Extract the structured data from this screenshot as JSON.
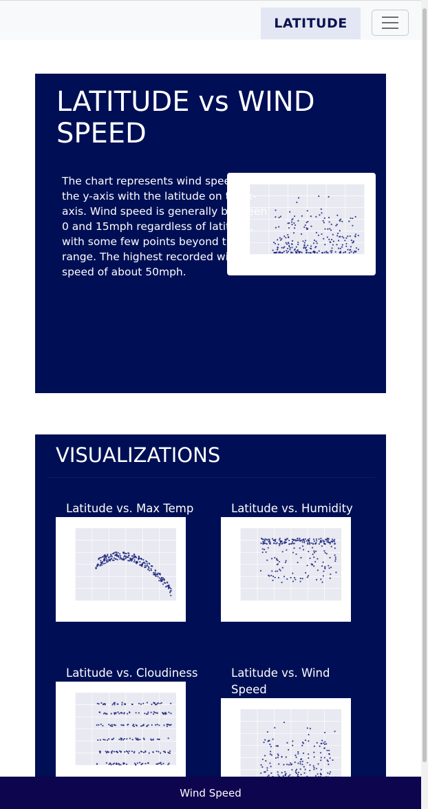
{
  "navbar": {
    "brand": "LATITUDE",
    "menu_icon": "hamburger-icon"
  },
  "hero": {
    "title": "LATITUDE vs WIND SPEED",
    "description": "The chart represents wind speed on the y-axis with the latitude on the x-axis. Wind speed is generally between 0 and 15mph regardless of latitude, with some few points beyond that range. The highest recorded wind speed of about 50mph."
  },
  "visualizations": {
    "heading": "VISUALIZATIONS",
    "cards": [
      {
        "title": "Latitude vs. Max Temp"
      },
      {
        "title": "Latitude vs. Humidity"
      },
      {
        "title": "Latitude vs. Cloudiness"
      },
      {
        "title": "Latitude vs. Wind Speed"
      }
    ]
  },
  "footer": {
    "label": "Wind Speed"
  },
  "colors": {
    "panel": "#000f55",
    "footer": "#0e054f",
    "brand_bg": "#e3e6f3",
    "point": "#1a237e"
  }
}
